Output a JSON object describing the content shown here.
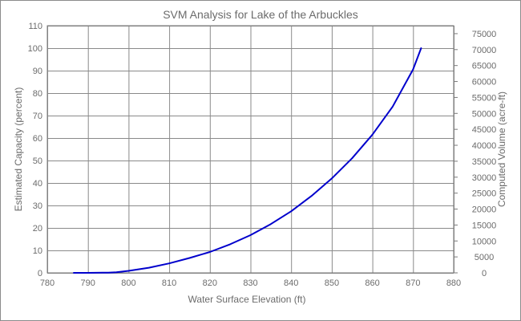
{
  "chart_data": {
    "type": "line",
    "title": "SVM Analysis for Lake of the Arbuckles",
    "xlabel": "Water Surface Elevation (ft)",
    "ylabel": "Estimated Capacity (percent)",
    "y2label": "Computed Volume (acre-ft)",
    "xlim": [
      780,
      880
    ],
    "ylim": [
      0,
      110
    ],
    "y2lim": [
      0,
      77500
    ],
    "x_ticks": [
      780,
      790,
      800,
      810,
      820,
      830,
      840,
      850,
      860,
      870,
      880
    ],
    "y_ticks": [
      0,
      10,
      20,
      30,
      40,
      50,
      60,
      70,
      80,
      90,
      100,
      110
    ],
    "y2_ticks": [
      0,
      5000,
      10000,
      15000,
      20000,
      25000,
      30000,
      35000,
      40000,
      45000,
      50000,
      55000,
      60000,
      65000,
      70000,
      75000
    ],
    "grid": true,
    "series_color": "#0000cc",
    "series": [
      {
        "x": [
          786.5,
          790,
          795,
          797,
          800,
          805,
          810,
          815,
          820,
          825,
          830,
          835,
          840,
          845,
          850,
          855,
          860,
          865,
          870,
          872
        ],
        "y": [
          0,
          0,
          0.1,
          0.3,
          0.9,
          2.3,
          4.2,
          6.6,
          9.3,
          12.7,
          16.8,
          21.7,
          27.4,
          34.2,
          42.0,
          51.0,
          61.5,
          74.0,
          90.5,
          100
        ]
      }
    ]
  }
}
